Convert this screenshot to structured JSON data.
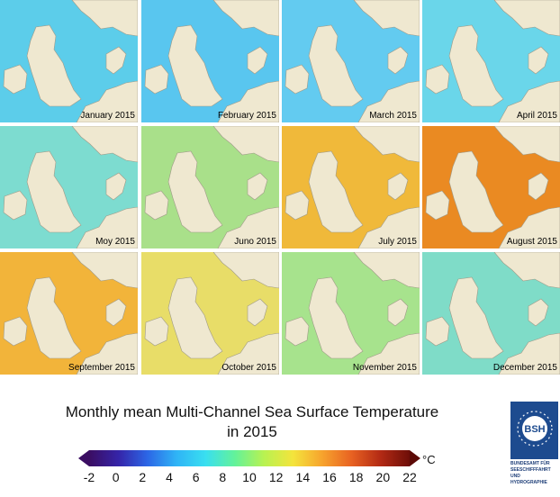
{
  "panels": [
    {
      "label": "January 2015",
      "color": "#5ccdea"
    },
    {
      "label": "February 2015",
      "color": "#59c6ef"
    },
    {
      "label": "March 2015",
      "color": "#63cbf0"
    },
    {
      "label": "April 2015",
      "color": "#6ad6ea"
    },
    {
      "label": "Moy 2015",
      "color": "#7ddcd0"
    },
    {
      "label": "Juno 2015",
      "color": "#a9e08a"
    },
    {
      "label": "July 2015",
      "color": "#f0b93a"
    },
    {
      "label": "August 2015",
      "color": "#ea8a22"
    },
    {
      "label": "September 2015",
      "color": "#f2b43a"
    },
    {
      "label": "October 2015",
      "color": "#e8dd68"
    },
    {
      "label": "November 2015",
      "color": "#a7e38d"
    },
    {
      "label": "December 2015",
      "color": "#7fdcc8"
    }
  ],
  "title": {
    "line1": "Monthly mean Multi-Channel Sea Surface Temperature",
    "line2": "in 2015"
  },
  "colorbar": {
    "unit": "°C",
    "ticks": [
      "-2",
      "0",
      "2",
      "4",
      "6",
      "8",
      "10",
      "12",
      "14",
      "16",
      "18",
      "20",
      "22"
    ],
    "min": -2,
    "max": 22,
    "colors": [
      "#3b0d62",
      "#3524a8",
      "#2c66e6",
      "#2fb4f6",
      "#39dff0",
      "#63f29a",
      "#b8f251",
      "#f4e43c",
      "#f7a32d",
      "#e86222",
      "#b32a14",
      "#6e0e08"
    ]
  },
  "logo": {
    "badge": "BSH",
    "lines": [
      "BUNDESAMT FÜR",
      "SEESCHIFFFAHRT",
      "UND",
      "HYDROGRAPHIE"
    ]
  }
}
